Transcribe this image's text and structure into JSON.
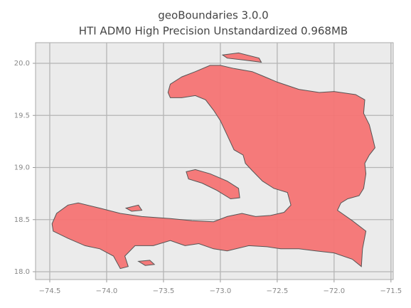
{
  "chart_data": {
    "type": "map",
    "title": "geoBoundaries 3.0.0",
    "subtitle": "HTI ADM0 High Precision Unstandardized 0.968MB",
    "color": "#f67474",
    "edgecolor": "#555555",
    "grid": true,
    "xlim": [
      -74.625,
      -71.48
    ],
    "ylim": [
      17.925,
      20.198
    ],
    "xticks": [
      {
        "value": -74.5,
        "label": "−74.5"
      },
      {
        "value": -74,
        "label": "−74.0"
      },
      {
        "value": -73.5,
        "label": "−73.5"
      },
      {
        "value": -73,
        "label": "−73.0"
      },
      {
        "value": -72.5,
        "label": "−72.5"
      },
      {
        "value": -72,
        "label": "−72.0"
      },
      {
        "value": -71.5,
        "label": "−71.5"
      }
    ],
    "yticks": [
      {
        "value": 18,
        "label": "18.0"
      },
      18.5,
      {
        "value": 19,
        "label": "19.0"
      },
      19.5,
      {
        "value": 20,
        "label": "20.0"
      }
    ],
    "polygons": [
      {
        "x": [
          -73.46,
          -73.44,
          -73.34,
          -73.22,
          -73.09,
          -73.0,
          -72.88,
          -72.72,
          -72.63,
          -72.5,
          -72.31,
          -72.13,
          -72.0,
          -71.81,
          -71.73,
          -71.74,
          -71.69,
          -71.66,
          -71.64,
          -71.69,
          -71.73,
          -71.72,
          -71.74,
          -71.78,
          -71.88,
          -71.94,
          -71.97,
          -71.84,
          -71.72,
          -71.75,
          -71.76,
          -71.84,
          -72.0,
          -72.16,
          -72.31,
          -72.47,
          -72.59,
          -72.75,
          -72.94,
          -73.06,
          -73.19,
          -73.31,
          -73.44,
          -73.59,
          -73.75,
          -73.84,
          -73.81,
          -73.88,
          -73.94,
          -74.06,
          -74.19,
          -74.34,
          -74.47,
          -74.48,
          -74.44,
          -74.34,
          -74.25,
          -74.06,
          -73.88,
          -73.69,
          -73.44,
          -73.25,
          -73.06,
          -72.94,
          -72.81,
          -72.69,
          -72.56,
          -72.44,
          -72.38,
          -72.41,
          -72.53,
          -72.63,
          -72.72,
          -72.78,
          -72.8,
          -72.88,
          -72.94,
          -73.0,
          -73.06,
          -73.13,
          -73.22,
          -73.34,
          -73.44
        ],
        "y": [
          19.72,
          19.8,
          19.87,
          19.92,
          19.98,
          19.98,
          19.95,
          19.92,
          19.88,
          19.82,
          19.75,
          19.72,
          19.73,
          19.7,
          19.65,
          19.52,
          19.41,
          19.28,
          19.19,
          19.12,
          19.04,
          18.94,
          18.8,
          18.73,
          18.7,
          18.66,
          18.59,
          18.49,
          18.39,
          18.22,
          18.05,
          18.12,
          18.18,
          18.2,
          18.22,
          18.22,
          18.24,
          18.25,
          18.2,
          18.22,
          18.27,
          18.25,
          18.3,
          18.25,
          18.25,
          18.15,
          18.05,
          18.03,
          18.15,
          18.22,
          18.25,
          18.32,
          18.39,
          18.46,
          18.56,
          18.64,
          18.66,
          18.61,
          18.56,
          18.53,
          18.51,
          18.49,
          18.48,
          18.53,
          18.56,
          18.53,
          18.54,
          18.57,
          18.64,
          18.76,
          18.8,
          18.87,
          18.97,
          19.04,
          19.12,
          19.17,
          19.31,
          19.45,
          19.55,
          19.65,
          19.69,
          19.67,
          19.67
        ]
      },
      {
        "x": [
          -73.3,
          -73.22,
          -73.09,
          -72.94,
          -72.84,
          -72.83,
          -72.91,
          -73.03,
          -73.16,
          -73.28
        ],
        "y": [
          18.96,
          18.98,
          18.94,
          18.87,
          18.8,
          18.71,
          18.7,
          18.78,
          18.85,
          18.89
        ]
      },
      {
        "x": [
          -72.98,
          -72.84,
          -72.66,
          -72.64,
          -72.78,
          -72.94
        ],
        "y": [
          20.08,
          20.1,
          20.05,
          20.01,
          20.03,
          20.05
        ]
      },
      {
        "x": [
          -73.83,
          -73.72,
          -73.69,
          -73.78
        ],
        "y": [
          18.61,
          18.64,
          18.59,
          18.58
        ]
      },
      {
        "x": [
          -73.72,
          -73.62,
          -73.58,
          -73.66
        ],
        "y": [
          18.1,
          18.11,
          18.07,
          18.06
        ]
      }
    ]
  }
}
